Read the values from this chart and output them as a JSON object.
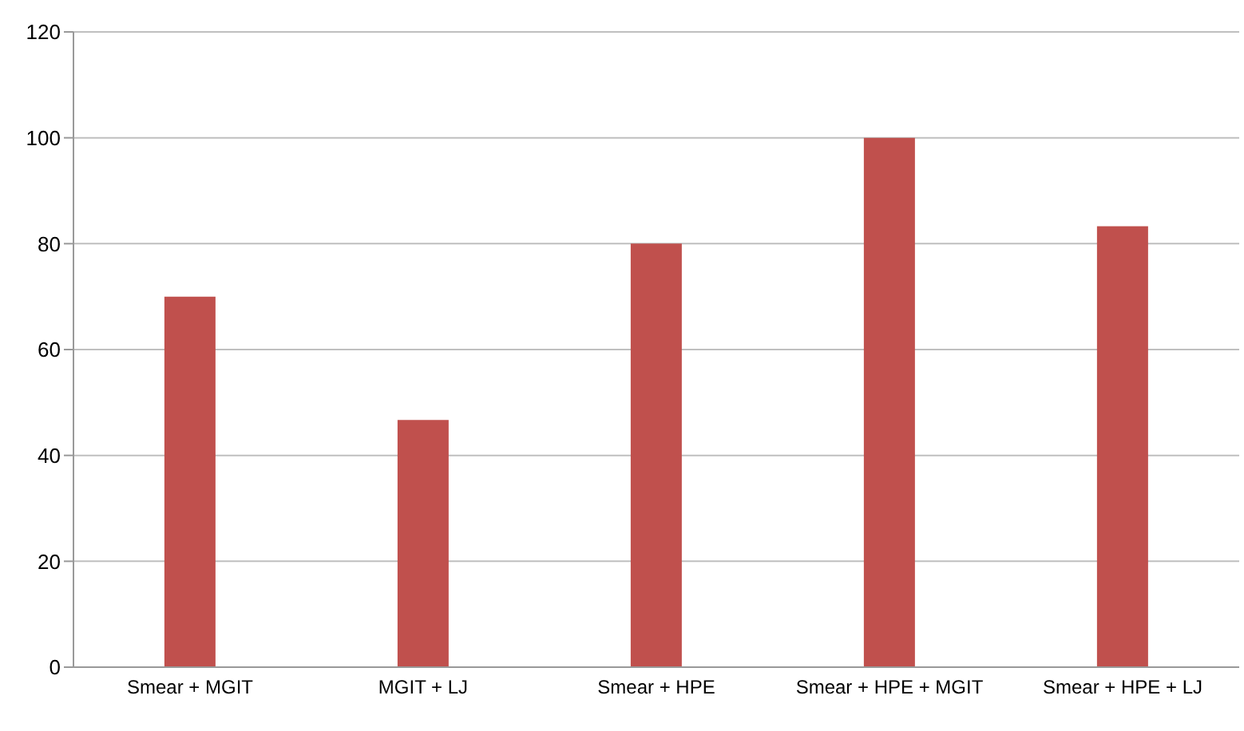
{
  "chart_data": {
    "type": "bar",
    "categories": [
      "Smear + MGIT",
      "MGIT + LJ",
      "Smear + HPE",
      "Smear + HPE + MGIT",
      "Smear + HPE + LJ"
    ],
    "values": [
      70,
      46.7,
      80,
      100,
      83.3
    ],
    "color": "#c0504d",
    "ylim": [
      0,
      120
    ],
    "yticks": [
      0,
      20,
      40,
      60,
      80,
      100,
      120
    ],
    "grid": "y"
  }
}
